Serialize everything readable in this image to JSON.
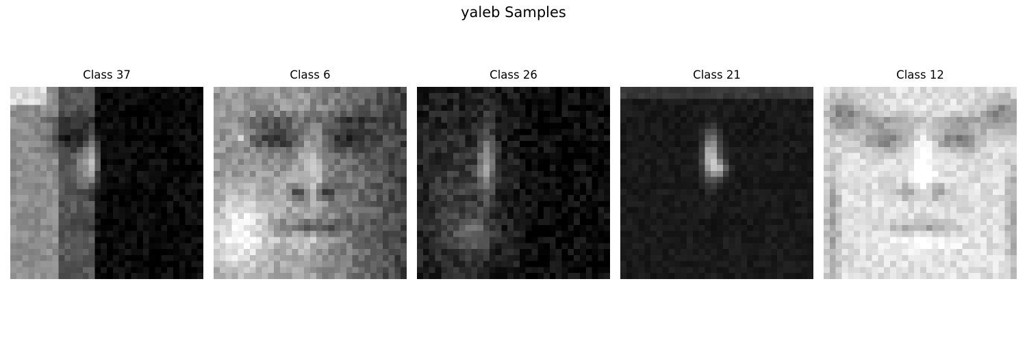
{
  "figure": {
    "title": "yaleb Samples"
  },
  "samples": [
    {
      "label": "Class 37",
      "lighting": "left-lit, strong shadow on right"
    },
    {
      "label": "Class 6",
      "lighting": "frontal-left, partial shadow"
    },
    {
      "label": "Class 26",
      "lighting": "side-lit, mostly dark"
    },
    {
      "label": "Class 21",
      "lighting": "very dark, nose highlight"
    },
    {
      "label": "Class 12",
      "lighting": "frontal, bright"
    }
  ],
  "colors": {
    "background": "#ffffff",
    "text": "#000000"
  }
}
